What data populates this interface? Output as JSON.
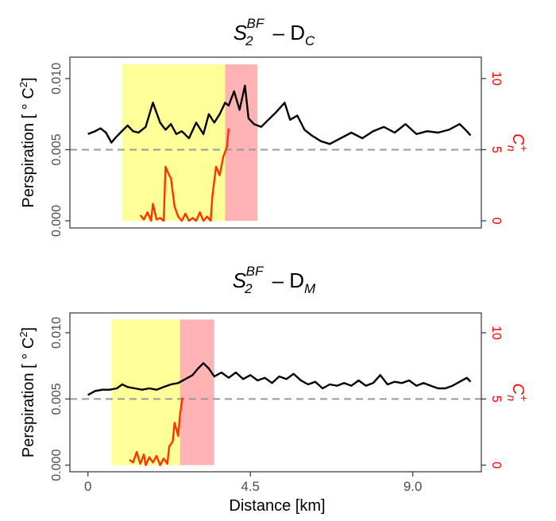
{
  "colors": {
    "perspiration_line": "#000000",
    "cn_line": "#ff3300",
    "reference_line": "#999999",
    "yellow_band": "#ffff99",
    "red_band": "#ffb3b3",
    "right_axis": "#ff0000"
  },
  "chart_data": [
    {
      "type": "line",
      "title_main": "S",
      "title_sub": "2",
      "title_sup": "BF",
      "title_dash": " – D",
      "title_dsub": "C",
      "ylabel_text": "Perspiration [",
      "ylabel_unit": " ° C",
      "ylabel_exp": "2",
      "ylabel_close": "]",
      "right_label": "C",
      "right_sup": "+",
      "right_sub": "n",
      "xlim": [
        -0.5,
        10.9
      ],
      "ylim": [
        -0.0005,
        0.0115
      ],
      "y2lim": [
        -0.5,
        11.5
      ],
      "yticks": [
        0.0,
        0.005,
        0.01
      ],
      "ytick_labels": [
        "0.000",
        "0.005",
        "0.010"
      ],
      "y2ticks": [
        0,
        5,
        10
      ],
      "y2tick_labels": [
        "0",
        "5",
        "10"
      ],
      "reference_y": 0.005,
      "bands": [
        {
          "kind": "yellow",
          "x0": 0.95,
          "x1": 3.8
        },
        {
          "kind": "red",
          "x0": 3.8,
          "x1": 4.7
        }
      ],
      "series": [
        {
          "axis": "left",
          "x": [
            0.0,
            0.2,
            0.35,
            0.5,
            0.65,
            0.75,
            0.9,
            1.1,
            1.25,
            1.4,
            1.6,
            1.8,
            2.0,
            2.15,
            2.3,
            2.45,
            2.6,
            2.8,
            3.0,
            3.2,
            3.35,
            3.5,
            3.65,
            3.8,
            3.9,
            4.05,
            4.2,
            4.35,
            4.45,
            4.6,
            4.8,
            5.0,
            5.2,
            5.45,
            5.6,
            5.8,
            6.0,
            6.2,
            6.45,
            6.7,
            7.0,
            7.3,
            7.6,
            7.9,
            8.2,
            8.5,
            8.8,
            9.1,
            9.4,
            9.7,
            10.0,
            10.3,
            10.5,
            10.6
          ],
          "y": [
            0.0061,
            0.0063,
            0.0065,
            0.0062,
            0.0055,
            0.0058,
            0.0062,
            0.0067,
            0.0063,
            0.0062,
            0.0066,
            0.0083,
            0.0069,
            0.0064,
            0.0068,
            0.0061,
            0.0063,
            0.0058,
            0.0069,
            0.0061,
            0.0075,
            0.0069,
            0.0075,
            0.0083,
            0.0081,
            0.0091,
            0.0078,
            0.0095,
            0.0072,
            0.0068,
            0.0066,
            0.0071,
            0.0076,
            0.0083,
            0.0071,
            0.0074,
            0.0064,
            0.006,
            0.0056,
            0.0054,
            0.0058,
            0.0062,
            0.0058,
            0.0063,
            0.0066,
            0.0062,
            0.0068,
            0.0061,
            0.0063,
            0.0062,
            0.0064,
            0.0068,
            0.0063,
            0.006
          ]
        },
        {
          "axis": "right",
          "x": [
            1.45,
            1.55,
            1.65,
            1.75,
            1.8,
            1.9,
            2.0,
            2.1,
            2.15,
            2.25,
            2.3,
            2.4,
            2.5,
            2.6,
            2.7,
            2.8,
            2.9,
            3.0,
            3.1,
            3.2,
            3.3,
            3.4,
            3.45,
            3.55,
            3.65,
            3.75,
            3.85,
            3.9
          ],
          "y": [
            0.4,
            0.1,
            0.6,
            0.0,
            1.2,
            0.1,
            0.2,
            0.0,
            3.8,
            3.2,
            3.0,
            1.0,
            0.3,
            0.0,
            0.5,
            0.0,
            0.2,
            0.0,
            0.6,
            0.0,
            0.3,
            0.0,
            1.8,
            3.8,
            3.2,
            4.5,
            5.2,
            6.5
          ]
        }
      ]
    },
    {
      "type": "line",
      "title_main": "S",
      "title_sub": "2",
      "title_sup": "BF",
      "title_dash": " – D",
      "title_dsub": "M",
      "ylabel_text": "Perspiration [",
      "ylabel_unit": " ° C",
      "ylabel_exp": "2",
      "ylabel_close": "]",
      "right_label": "C",
      "right_sup": "+",
      "right_sub": "n",
      "xlabel": "Distance [km]",
      "xticks": [
        0,
        4.5,
        9.0
      ],
      "xtick_labels": [
        "0",
        "4.5",
        "9.0"
      ],
      "xlim": [
        -0.5,
        10.9
      ],
      "ylim": [
        -0.0005,
        0.0115
      ],
      "y2lim": [
        -0.5,
        11.5
      ],
      "yticks": [
        0.0,
        0.005,
        0.01
      ],
      "ytick_labels": [
        "0.000",
        "0.005",
        "0.010"
      ],
      "y2ticks": [
        0,
        5,
        10
      ],
      "y2tick_labels": [
        "0",
        "5",
        "10"
      ],
      "reference_y": 0.005,
      "bands": [
        {
          "kind": "yellow",
          "x0": 0.65,
          "x1": 2.55
        },
        {
          "kind": "red",
          "x0": 2.55,
          "x1": 3.5
        }
      ],
      "series": [
        {
          "axis": "left",
          "x": [
            0.0,
            0.2,
            0.4,
            0.6,
            0.8,
            0.95,
            1.1,
            1.3,
            1.5,
            1.7,
            1.9,
            2.1,
            2.3,
            2.5,
            2.7,
            2.9,
            3.05,
            3.2,
            3.35,
            3.5,
            3.7,
            3.9,
            4.1,
            4.3,
            4.5,
            4.7,
            4.9,
            5.1,
            5.3,
            5.5,
            5.7,
            5.9,
            6.1,
            6.3,
            6.5,
            6.7,
            6.9,
            7.1,
            7.3,
            7.5,
            7.7,
            7.9,
            8.1,
            8.3,
            8.5,
            8.7,
            8.9,
            9.1,
            9.3,
            9.5,
            9.7,
            9.9,
            10.1,
            10.3,
            10.5,
            10.6
          ],
          "y": [
            0.0053,
            0.0056,
            0.0057,
            0.0057,
            0.0058,
            0.0061,
            0.0059,
            0.0058,
            0.0057,
            0.0058,
            0.0057,
            0.0059,
            0.0061,
            0.0062,
            0.0065,
            0.0068,
            0.0073,
            0.0077,
            0.0073,
            0.0067,
            0.007,
            0.0066,
            0.007,
            0.0065,
            0.0068,
            0.0064,
            0.0066,
            0.0062,
            0.0067,
            0.0065,
            0.0069,
            0.0064,
            0.0061,
            0.0063,
            0.0058,
            0.0061,
            0.006,
            0.0062,
            0.006,
            0.0064,
            0.006,
            0.0062,
            0.0068,
            0.0061,
            0.0063,
            0.0062,
            0.0064,
            0.006,
            0.0062,
            0.006,
            0.0058,
            0.0058,
            0.006,
            0.0063,
            0.0066,
            0.0063
          ]
        },
        {
          "axis": "right",
          "x": [
            1.15,
            1.25,
            1.35,
            1.45,
            1.55,
            1.6,
            1.7,
            1.8,
            1.9,
            2.0,
            2.1,
            2.2,
            2.25,
            2.35,
            2.4,
            2.5,
            2.55,
            2.62
          ],
          "y": [
            0.4,
            0.2,
            1.0,
            0.1,
            0.8,
            0.0,
            0.6,
            0.2,
            0.7,
            0.0,
            0.5,
            0.1,
            1.4,
            1.8,
            3.2,
            2.2,
            3.8,
            5.1
          ]
        }
      ]
    }
  ]
}
